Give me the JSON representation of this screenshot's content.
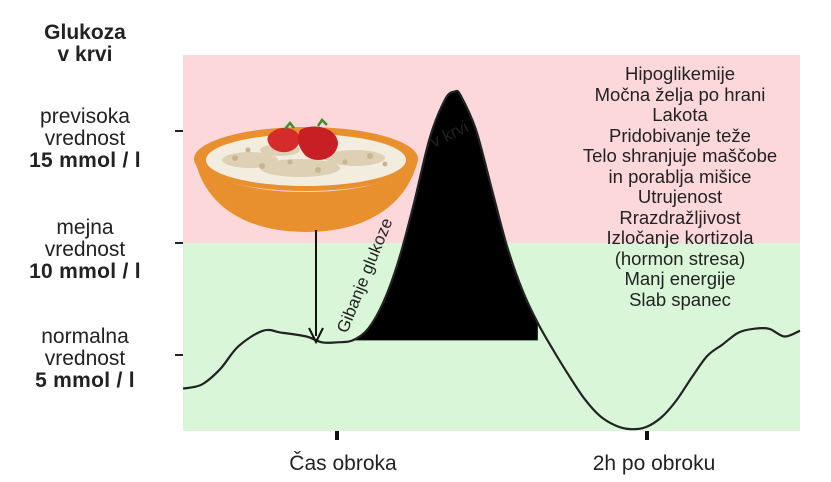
{
  "y_title": [
    "Glukoza",
    "v krvi"
  ],
  "levels": [
    {
      "line1": "previsoka",
      "line2": "vrednost",
      "value": "15 mmol / l"
    },
    {
      "line1": "mejna",
      "line2": "vrednost",
      "value": "10 mmol / l"
    },
    {
      "line1": "normalna",
      "line2": "vrednost",
      "value": "5 mmol / l"
    }
  ],
  "x_ticks": [
    "Čas obroka",
    "2h po obroku"
  ],
  "curve_labels": {
    "rise": "Gibanje glukoze",
    "peak": "v krvi"
  },
  "symptoms": [
    "Hipoglikemije",
    "Močna želja po hrani",
    "Lakota",
    "Pridobivanje teže",
    "Telo shranjuje maščobe",
    "in porablja mišice",
    "Utrujenost",
    "Rrazdražljivost",
    "Izločanje kortizola",
    "(hormon stresa)",
    "Manj energije",
    "Slab spanec"
  ],
  "colors": {
    "high_zone": "#fcd8db",
    "normal_zone": "#d9f6d9",
    "curve": "#222222",
    "fill": "#000000",
    "bowl": "#e8902e"
  },
  "chart_data": {
    "type": "area",
    "x_ticks": [
      "Čas obroka",
      "2h po obroku"
    ],
    "y_ticks": [
      {
        "value": 15,
        "label": "15 mmol / l"
      },
      {
        "value": 10,
        "label": "10 mmol / l"
      },
      {
        "value": 5,
        "label": "5 mmol / l"
      }
    ],
    "zones": [
      {
        "from": 10,
        "to": 19.5,
        "meaning": "previsoka"
      },
      {
        "from": 0,
        "to": 10,
        "meaning": "normalna"
      }
    ],
    "ylim": [
      0,
      19.5
    ],
    "x": [
      0,
      0.3,
      0.6,
      0.9,
      1.3,
      1.6,
      2.0,
      2.25,
      2.5,
      2.75,
      3.0,
      3.25,
      3.5,
      3.75,
      4.0,
      4.25,
      4.4,
      4.5,
      4.75,
      5.0,
      5.25,
      5.5,
      5.75,
      6.0,
      6.25,
      6.5,
      6.75,
      7.0,
      7.25,
      7.5,
      7.75,
      8.0,
      8.25,
      8.5,
      8.75,
      9.0,
      9.25,
      9.5,
      9.75,
      10.0
    ],
    "y": [
      2.2,
      2.4,
      3.2,
      4.4,
      5.2,
      5.1,
      4.9,
      4.6,
      4.6,
      4.7,
      5.3,
      6.7,
      8.9,
      11.9,
      15.2,
      17.2,
      17.6,
      17.4,
      15.6,
      12.6,
      9.6,
      7.3,
      5.6,
      4.2,
      2.9,
      1.7,
      0.8,
      0.3,
      0.1,
      0.2,
      0.7,
      1.6,
      2.8,
      3.9,
      4.5,
      5.1,
      5.3,
      5.3,
      4.9,
      5.2
    ]
  }
}
